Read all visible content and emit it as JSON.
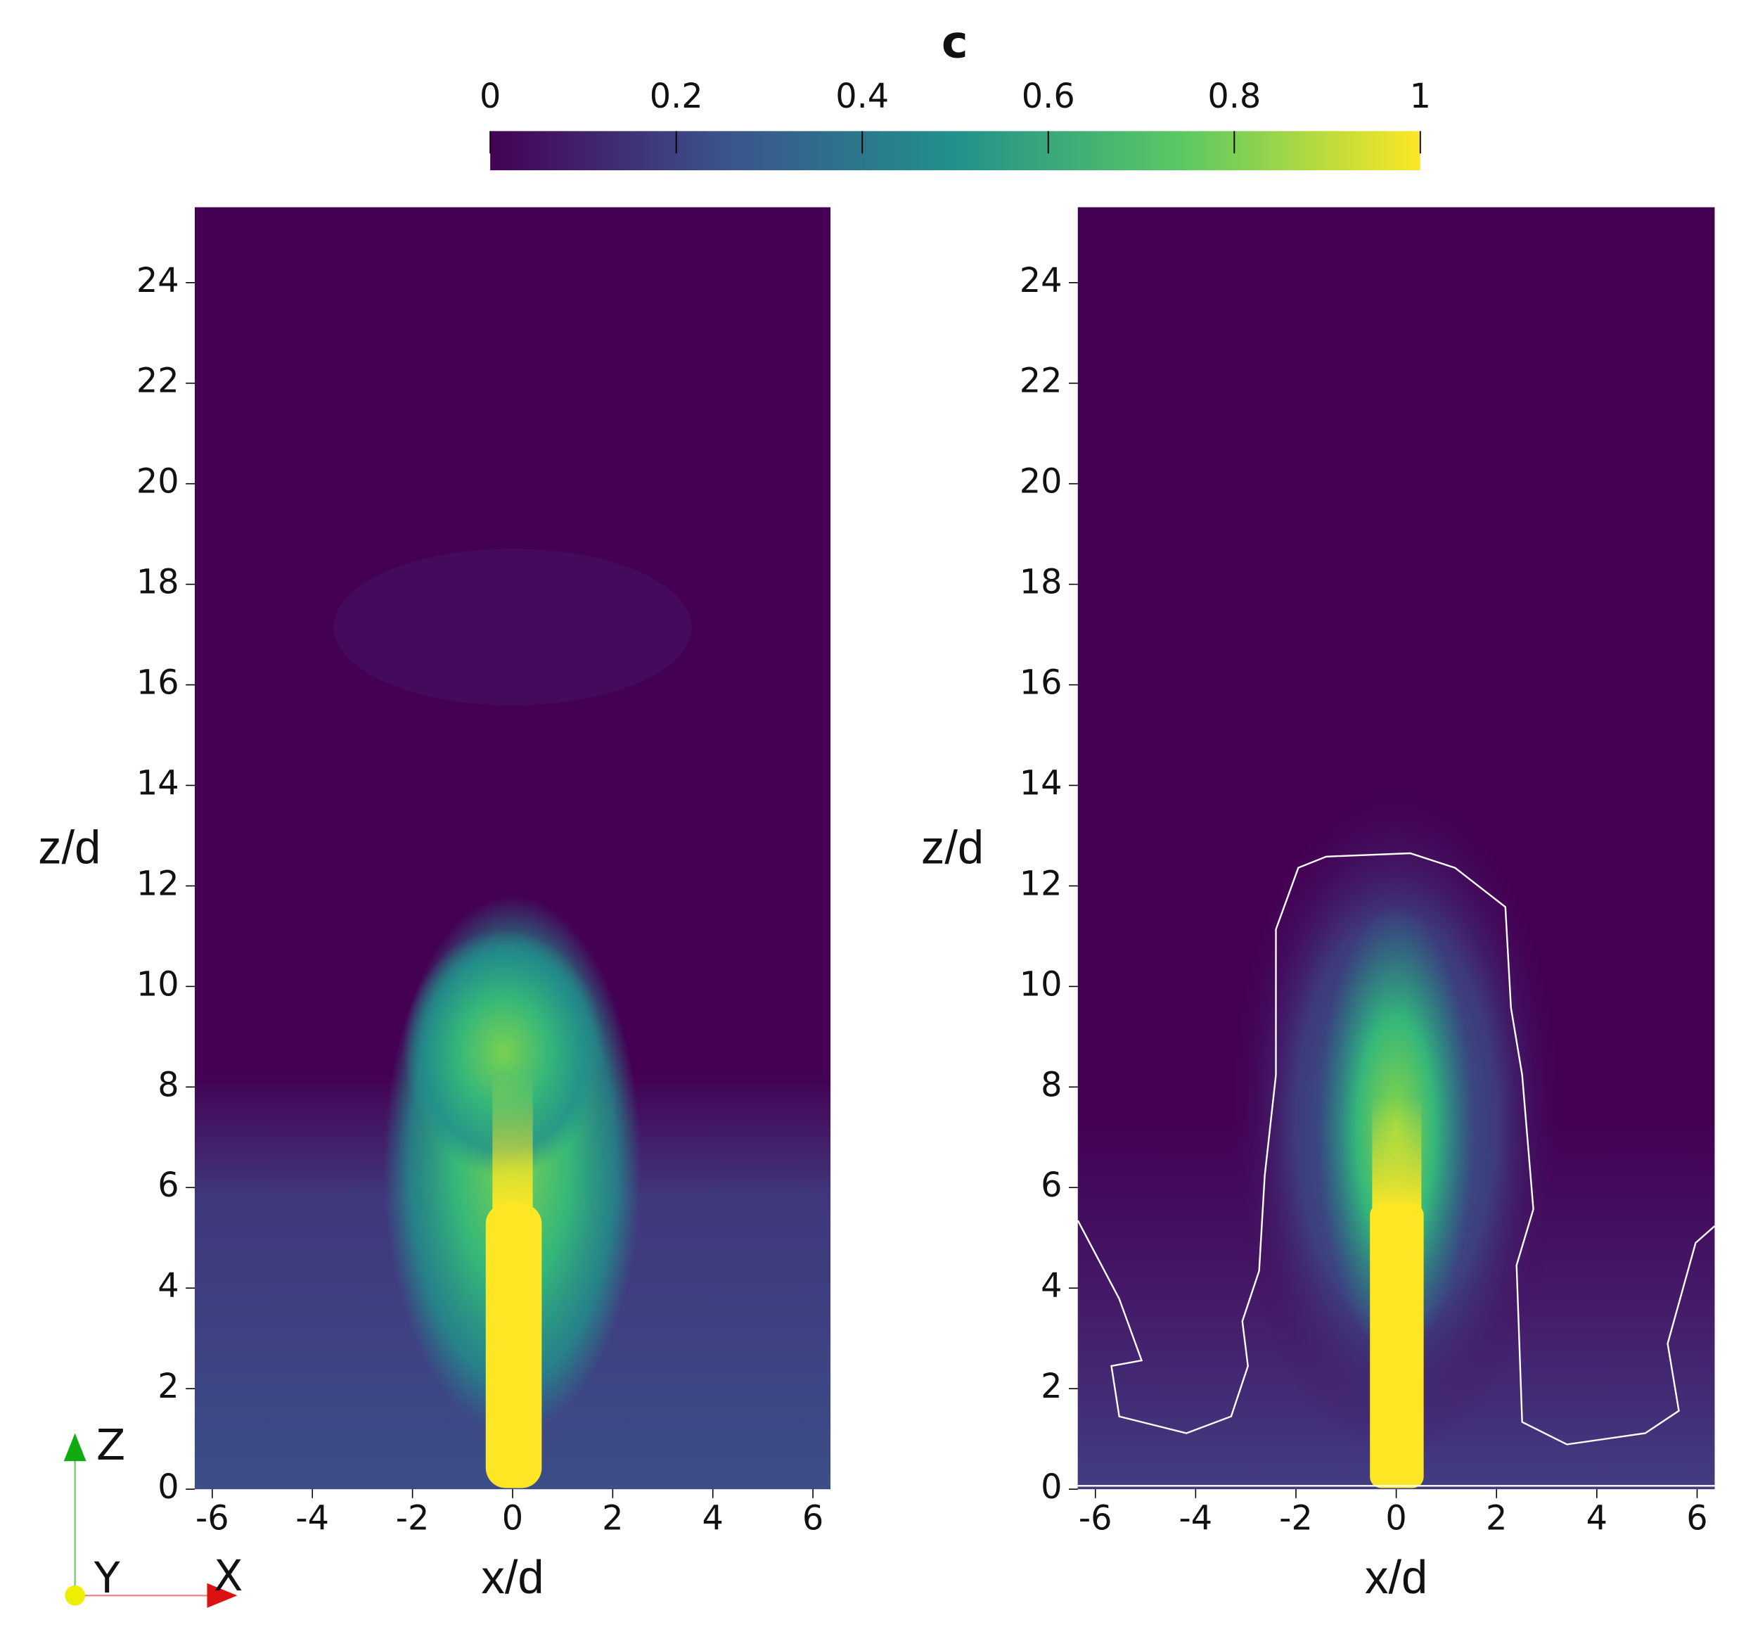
{
  "colorbar": {
    "title": "c",
    "lim": [
      0,
      1
    ],
    "ticks": [
      0,
      0.2,
      0.4,
      0.6,
      0.8,
      1
    ],
    "colors": [
      "#440154",
      "#3b528b",
      "#21918c",
      "#5ec962",
      "#fde725"
    ]
  },
  "chart_data": [
    {
      "type": "heatmap",
      "xlabel": "x/d",
      "ylabel": "z/d",
      "xlim": [
        -6.35,
        6.35
      ],
      "ylim": [
        0,
        25.5
      ],
      "xticks": [
        -6,
        -4,
        -2,
        0,
        2,
        4,
        6
      ],
      "yticks": [
        0,
        2,
        4,
        6,
        8,
        10,
        12,
        14,
        16,
        18,
        20,
        22,
        24
      ]
    },
    {
      "type": "heatmap",
      "xlabel": "x/d",
      "ylabel": "z/d",
      "xlim": [
        -6.35,
        6.35
      ],
      "ylim": [
        0,
        25.5
      ],
      "xticks": [
        -6,
        -4,
        -2,
        0,
        2,
        4,
        6
      ],
      "yticks": [
        0,
        2,
        4,
        6,
        8,
        10,
        12,
        14,
        16,
        18,
        20,
        22,
        24
      ]
    }
  ],
  "axes_triad": {
    "labels": [
      "Z",
      "Y",
      "X"
    ]
  }
}
